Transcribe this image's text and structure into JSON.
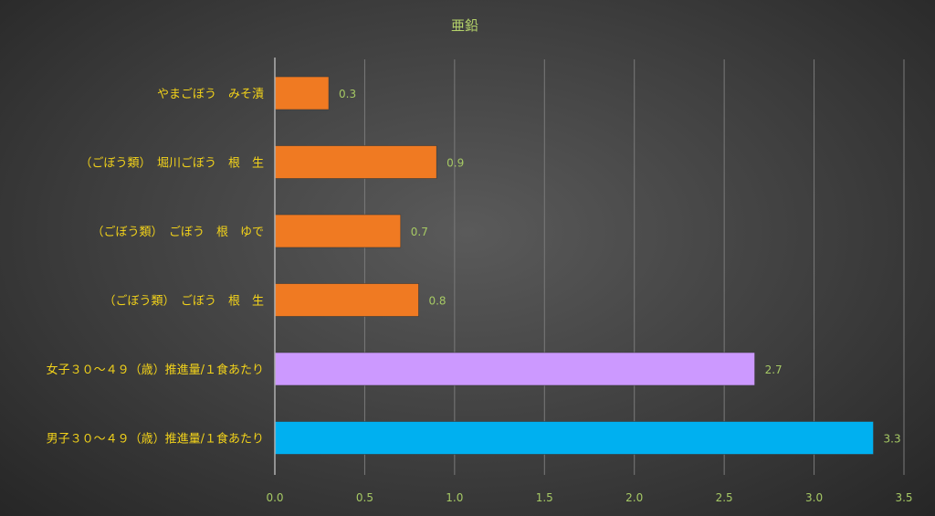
{
  "chart_data": {
    "type": "bar",
    "orientation": "horizontal",
    "title": "亜鉛",
    "xlabel": "",
    "ylabel": "",
    "xlim": [
      0,
      3.5
    ],
    "x_ticks": [
      "0.0",
      "0.5",
      "1.0",
      "1.5",
      "2.0",
      "2.5",
      "3.0",
      "3.5"
    ],
    "grid": true,
    "categories": [
      "やまごぼう　みそ漬",
      "（ごぼう類）　堀川ごぼう　根　生",
      "（ごぼう類）　ごぼう　根　ゆで",
      "（ごぼう類）　ごぼう　根　生",
      "女子３０～４９（歳）推進量/１食あたり",
      "男子３０～４９（歳）推進量/１食あたり"
    ],
    "values": [
      0.3,
      0.9,
      0.7,
      0.8,
      2.67,
      3.33
    ],
    "value_labels": [
      "0.3",
      "0.9",
      "0.7",
      "0.8",
      "2.7",
      "3.3"
    ],
    "bar_colors": [
      "#f07a22",
      "#f07a22",
      "#f07a22",
      "#f07a22",
      "#cc99ff",
      "#00b0f0"
    ]
  }
}
